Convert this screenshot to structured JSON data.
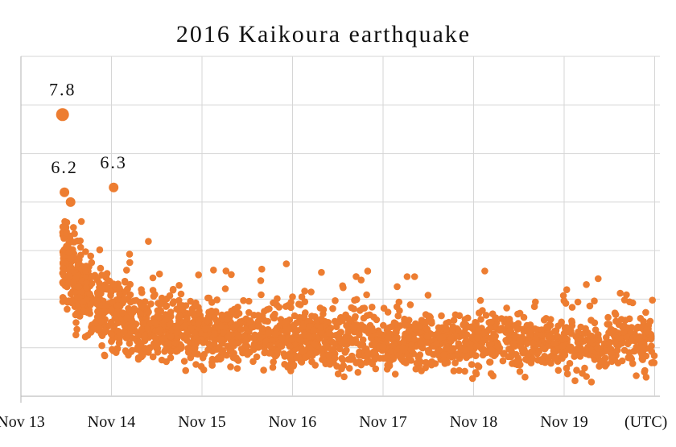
{
  "chart_data": {
    "type": "scatter",
    "title": "2016 Kaikoura earthquake",
    "xlabel": "",
    "ylabel": "",
    "x_unit_label": "(UTC)",
    "x_ticks": [
      "Nov 13",
      "Nov 14",
      "Nov 15",
      "Nov 16",
      "Nov 17",
      "Nov 18",
      "Nov 19"
    ],
    "xlim": [
      "Nov 13",
      "Nov 20"
    ],
    "ylim": [
      2,
      9
    ],
    "grid": true,
    "legend": "none",
    "marker_color": "#ED7D31",
    "annotations": [
      {
        "text": "7.8",
        "x": "2016-11-13T11:02",
        "y": 7.8
      },
      {
        "text": "6.2",
        "x": "2016-11-13T11:32",
        "y": 6.2
      },
      {
        "text": "6.3",
        "x": "2016-11-14T00:34",
        "y": 6.3
      }
    ],
    "series": [
      {
        "main_shocks": [
          {
            "x": "2016-11-13T11:02",
            "y": 7.8
          },
          {
            "x": "2016-11-13T11:32",
            "y": 6.2
          },
          {
            "x": "2016-11-14T00:34",
            "y": 6.3
          },
          {
            "x": "2016-11-13T13:10",
            "y": 6.0
          }
        ]
      }
    ]
  }
}
